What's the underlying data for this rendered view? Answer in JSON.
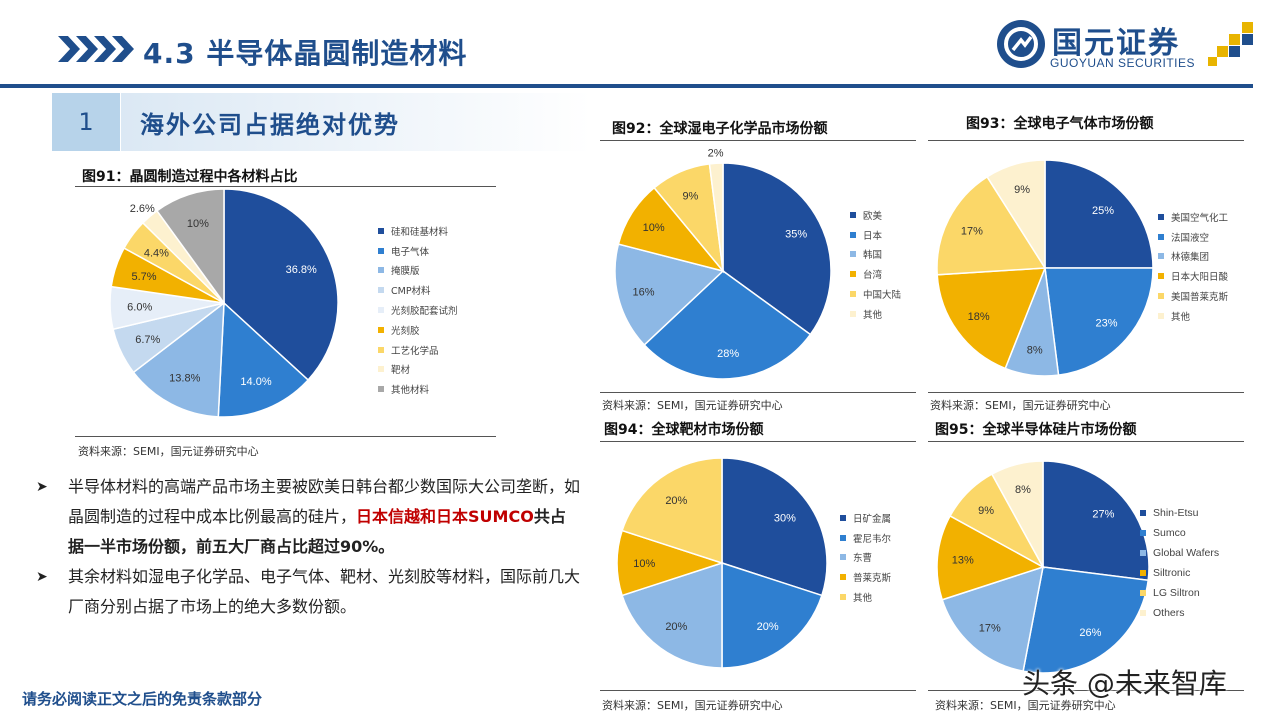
{
  "header": {
    "title": "4.3 半导体晶圆制造材料",
    "logo_cn": "国元证券",
    "logo_en": "GUOYUAN SECURITIES"
  },
  "section": {
    "number": "1",
    "title": "海外公司占据绝对优势"
  },
  "colors": {
    "brand": "#1f4e8c",
    "accent_yellow": "#e8b400",
    "highlight_red": "#c00000"
  },
  "figures": [
    {
      "title": "图91：晶圆制造过程中各材料占比",
      "source": "资料来源：SEMI，国元证券研究中心",
      "chart_data": {
        "type": "pie",
        "categories": [
          "硅和硅基材料",
          "电子气体",
          "掩膜版",
          "CMP材料",
          "光刻胶配套试剂",
          "光刻胶",
          "工艺化学品",
          "靶材",
          "其他材料"
        ],
        "values": [
          36.8,
          14.0,
          13.8,
          6.7,
          6.0,
          5.7,
          4.4,
          2.6,
          10
        ],
        "labels": [
          "36.8%",
          "14.0%",
          "13.8%",
          "6.7%",
          "6.0%",
          "5.7%",
          "4.4%",
          "2.6%",
          "10%"
        ],
        "colors": [
          "#1f4e9c",
          "#2f7fd0",
          "#8db8e5",
          "#c4d9ef",
          "#e6eef8",
          "#f2b100",
          "#fbd768",
          "#fdf1cf",
          "#a8a8a8"
        ],
        "legend_position": "right"
      }
    },
    {
      "title": "图92：全球湿电子化学品市场份额",
      "source": "资料来源：SEMI，国元证券研究中心",
      "chart_data": {
        "type": "pie",
        "categories": [
          "欧美",
          "日本",
          "韩国",
          "台湾",
          "中国大陆",
          "其他"
        ],
        "values": [
          35,
          28,
          16,
          10,
          9,
          2
        ],
        "labels": [
          "35%",
          "28%",
          "16%",
          "10%",
          "9%",
          "2%"
        ],
        "colors": [
          "#1f4e9c",
          "#2f7fd0",
          "#8db8e5",
          "#f2b100",
          "#fbd768",
          "#fdf1cf"
        ],
        "legend_position": "right"
      }
    },
    {
      "title": "图93：全球电子气体市场份额",
      "source": "资料来源：SEMI，国元证券研究中心",
      "chart_data": {
        "type": "pie",
        "categories": [
          "美国空气化工",
          "法国液空",
          "林德集团",
          "日本大阳日酸",
          "美国普莱克斯",
          "其他"
        ],
        "values": [
          25,
          23,
          8,
          18,
          17,
          9
        ],
        "labels": [
          "25%",
          "23%",
          "8%",
          "18%",
          "17%",
          "9%"
        ],
        "colors": [
          "#1f4e9c",
          "#2f7fd0",
          "#8db8e5",
          "#f2b100",
          "#fbd768",
          "#fdf1cf"
        ],
        "legend_position": "right"
      }
    },
    {
      "title": "图94：全球靶材市场份额",
      "source": "资料来源：SEMI，国元证券研究中心",
      "chart_data": {
        "type": "pie",
        "categories": [
          "日矿金属",
          "霍尼韦尔",
          "东曹",
          "普莱克斯",
          "其他"
        ],
        "values": [
          30,
          20,
          20,
          10,
          20
        ],
        "labels": [
          "30%",
          "20%",
          "20%",
          "10%",
          "20%"
        ],
        "colors": [
          "#1f4e9c",
          "#2f7fd0",
          "#8db8e5",
          "#f2b100",
          "#fbd768"
        ],
        "legend_position": "right"
      }
    },
    {
      "title": "图95：全球半导体硅片市场份额",
      "source": "资料来源：SEMI，国元证券研究中心",
      "chart_data": {
        "type": "pie",
        "categories": [
          "Shin-Etsu",
          "Sumco",
          "Global Wafers",
          "Siltronic",
          "LG Siltron",
          "Others"
        ],
        "values": [
          27,
          26,
          17,
          13,
          9,
          8
        ],
        "labels": [
          "27%",
          "26%",
          "17%",
          "13%",
          "9%",
          "8%"
        ],
        "colors": [
          "#1f4e9c",
          "#2f7fd0",
          "#8db8e5",
          "#f2b100",
          "#fbd768",
          "#fdf1cf"
        ],
        "legend_position": "right"
      }
    }
  ],
  "bullets": [
    {
      "text_a": "半导体材料的高端产品市场主要被欧美日韩台都少数国际大公司垄断，如晶圆制造的过程中成本比例最高的硅片，",
      "text_red": "日本信越和日本SUMCO",
      "text_bold": "共占据一半市场份额，前五大厂商占比超过90%。"
    },
    {
      "text_a": "其余材料如湿电子化学品、电子气体、靶材、光刻胶等材料，国际前几大厂商分别占据了市场上的绝大多数份额。"
    }
  ],
  "footer": "请务必阅读正文之后的免责条款部分",
  "watermark": "头条 @未来智库"
}
